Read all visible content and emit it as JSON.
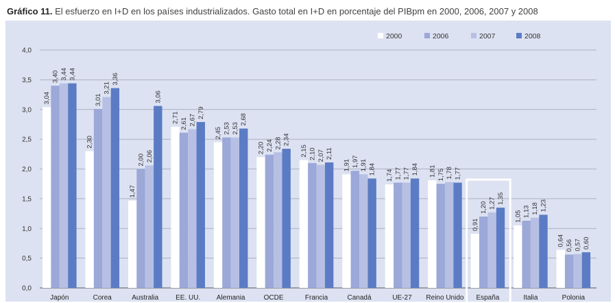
{
  "title_lead": "Gráfico 11.",
  "title_rest": "El esfuerzo en I+D en los países industrializados. Gasto total en I+D en porcentaje del PIBpm en 2000, 2006, 2007 y 2008",
  "colors": {
    "panel_bg": "#dde2f2",
    "grid": "#9aa0b3",
    "highlight_box": "#ffffff"
  },
  "chart_data": {
    "type": "bar",
    "title": "",
    "xlabel": "",
    "ylabel": "",
    "ylim": [
      0,
      4.0
    ],
    "yticks": [
      "0,0",
      "0,5",
      "1,0",
      "1,5",
      "2,0",
      "2,5",
      "3,0",
      "3,5",
      "4,0"
    ],
    "grid": true,
    "legend_position": "top-right",
    "highlighted_category": "España",
    "categories": [
      "Japón",
      "Corea",
      "Australia",
      "EE. UU.",
      "Alemania",
      "OCDE",
      "Francia",
      "Canadá",
      "UE-27",
      "Reino Unido",
      "España",
      "Italia",
      "Polonia"
    ],
    "series": [
      {
        "name": "2000",
        "color": "#ffffff",
        "values": [
          3.04,
          2.3,
          1.47,
          2.71,
          2.45,
          2.2,
          2.15,
          1.91,
          1.74,
          1.81,
          0.91,
          1.05,
          0.64
        ],
        "labels": [
          "3,04",
          "2,30",
          "1,47",
          "2,71",
          "2,45",
          "2,20",
          "2,15",
          "1,91",
          "1,74",
          "1,81",
          "0,91",
          "1,05",
          "0,64"
        ]
      },
      {
        "name": "2006",
        "color": "#9ba8d8",
        "values": [
          3.4,
          3.01,
          2.0,
          2.61,
          2.53,
          2.24,
          2.1,
          1.97,
          1.77,
          1.75,
          1.2,
          1.13,
          0.56
        ],
        "labels": [
          "3,40",
          "3,01",
          "2,00",
          "2,61",
          "2,53",
          "2,24",
          "2,10",
          "1,97",
          "1,77",
          "1,75",
          "1,20",
          "1,13",
          "0,56"
        ]
      },
      {
        "name": "2007",
        "color": "#b7c0e4",
        "values": [
          3.44,
          3.21,
          2.06,
          2.67,
          2.53,
          2.28,
          2.07,
          1.91,
          1.77,
          1.78,
          1.27,
          1.18,
          0.57
        ],
        "labels": [
          "3,44",
          "3,21",
          "2,06",
          "2,67",
          "2,53",
          "2,28",
          "2,07",
          "1,91",
          "1,77",
          "1,78",
          "1,27",
          "1,18",
          "0,57"
        ]
      },
      {
        "name": "2008",
        "color": "#5b7cc4",
        "values": [
          3.44,
          3.36,
          3.06,
          2.79,
          2.68,
          2.34,
          2.11,
          1.84,
          1.84,
          1.77,
          1.35,
          1.23,
          0.6
        ],
        "labels": [
          "3,44",
          "3,36",
          "3,06",
          "2,79",
          "2,68",
          "2,34",
          "2,11",
          "1,84",
          "1,84",
          "1,77",
          "1,35",
          "1,23",
          "0,60"
        ]
      }
    ]
  }
}
